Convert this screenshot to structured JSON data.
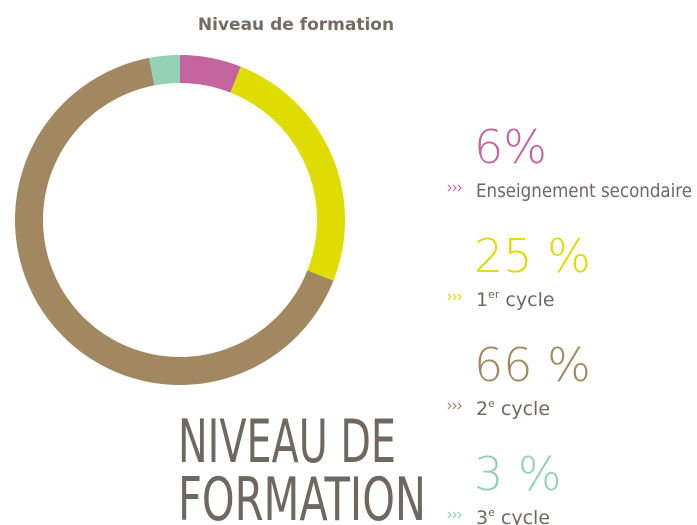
{
  "chart_data": {
    "type": "donut",
    "title": "Niveau de formation",
    "heading": [
      "NIVEAU DE",
      "FORMATION"
    ],
    "categories": [
      "Enseignement secondaire",
      "1er cycle",
      "2e cycle",
      "3e cycle"
    ],
    "values": [
      6,
      25,
      66,
      3
    ],
    "value_labels": [
      "6%",
      "25 %",
      "66 %",
      "3 %"
    ],
    "colors": [
      "#c4649f",
      "#dedc00",
      "#a28860",
      "#95d1b4"
    ]
  }
}
